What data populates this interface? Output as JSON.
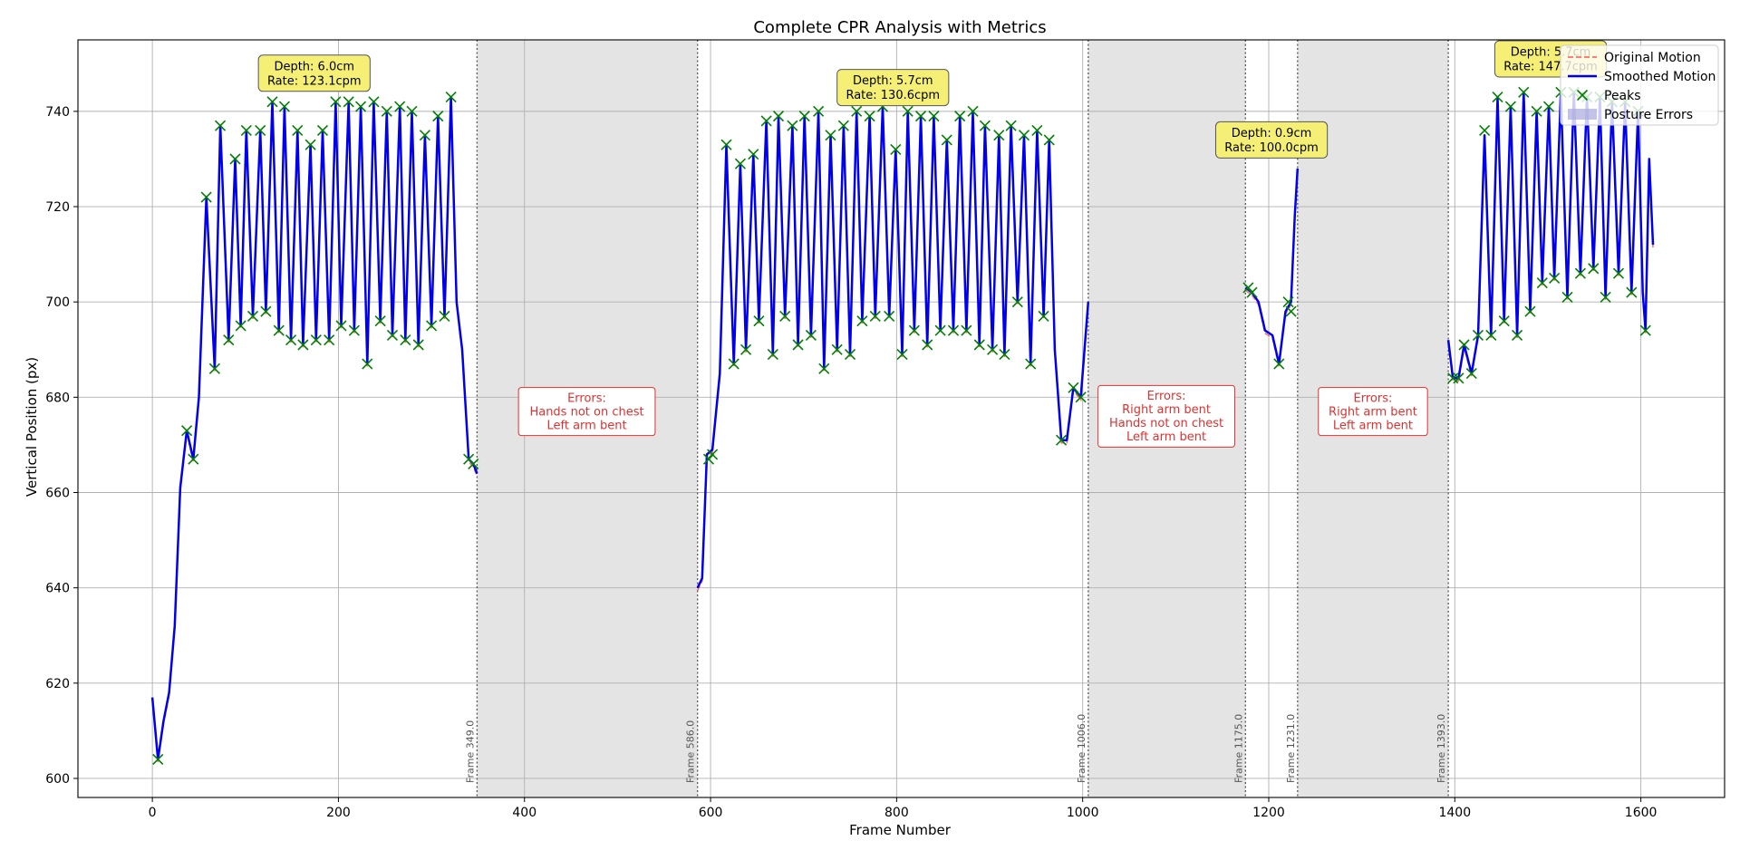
{
  "chart_data": {
    "type": "line",
    "title": "Complete CPR Analysis with Metrics",
    "xlabel": "Frame Number",
    "ylabel": "Vertical Position (px)",
    "xlim": [
      -80,
      1690
    ],
    "ylim": [
      596,
      755
    ],
    "x_ticks": [
      0,
      200,
      400,
      600,
      800,
      1000,
      1200,
      1400,
      1600
    ],
    "y_ticks": [
      600,
      620,
      640,
      660,
      680,
      700,
      720,
      740
    ],
    "grid": true,
    "legend_position": "top-right",
    "legend": [
      {
        "label": "Original Motion",
        "style": "dashed",
        "color": "#ff5555"
      },
      {
        "label": "Smoothed Motion",
        "style": "solid",
        "color": "#0000ee"
      },
      {
        "label": "Peaks",
        "style": "marker-x",
        "color": "#008000"
      },
      {
        "label": "Posture Errors",
        "style": "patch",
        "color": "#aaaadd"
      }
    ],
    "colors": {
      "original": "#ff5555",
      "smoothed": "#0000ee",
      "peaks": "#008000",
      "error_region": "#e4e4e4",
      "metric_box": "#f5f075",
      "error_text": "#e03030"
    },
    "segments": [
      {
        "name": "Segment 1",
        "points": [
          [
            0,
            617
          ],
          [
            6,
            604
          ],
          [
            12,
            612
          ],
          [
            18,
            618
          ],
          [
            24,
            632
          ],
          [
            30,
            661
          ],
          [
            37,
            673
          ],
          [
            44,
            667
          ],
          [
            50,
            680
          ],
          [
            58,
            722
          ],
          [
            67,
            686
          ],
          [
            73,
            737
          ],
          [
            82,
            692
          ],
          [
            89,
            730
          ],
          [
            95,
            695
          ],
          [
            101,
            736
          ],
          [
            108,
            697
          ],
          [
            116,
            736
          ],
          [
            122,
            698
          ],
          [
            129,
            742
          ],
          [
            136,
            694
          ],
          [
            142,
            741
          ],
          [
            149,
            692
          ],
          [
            156,
            736
          ],
          [
            162,
            691
          ],
          [
            170,
            733
          ],
          [
            176,
            692
          ],
          [
            183,
            736
          ],
          [
            190,
            692
          ],
          [
            197,
            742
          ],
          [
            203,
            695
          ],
          [
            211,
            742
          ],
          [
            217,
            694
          ],
          [
            224,
            741
          ],
          [
            231,
            687
          ],
          [
            238,
            742
          ],
          [
            245,
            696
          ],
          [
            252,
            740
          ],
          [
            258,
            693
          ],
          [
            266,
            741
          ],
          [
            272,
            692
          ],
          [
            279,
            740
          ],
          [
            286,
            691
          ],
          [
            293,
            735
          ],
          [
            300,
            695
          ],
          [
            307,
            739
          ],
          [
            314,
            697
          ],
          [
            321,
            743
          ],
          [
            327,
            700
          ],
          [
            333,
            690
          ],
          [
            340,
            667
          ],
          [
            345,
            666
          ],
          [
            349,
            664
          ]
        ]
      },
      {
        "name": "Segment 2",
        "points": [
          [
            586,
            640
          ],
          [
            591,
            642
          ],
          [
            596,
            668
          ],
          [
            602,
            669
          ],
          [
            610,
            685
          ],
          [
            617,
            733
          ],
          [
            625,
            687
          ],
          [
            632,
            729
          ],
          [
            638,
            690
          ],
          [
            646,
            731
          ],
          [
            652,
            696
          ],
          [
            660,
            738
          ],
          [
            667,
            689
          ],
          [
            673,
            739
          ],
          [
            680,
            697
          ],
          [
            688,
            737
          ],
          [
            694,
            691
          ],
          [
            701,
            739
          ],
          [
            708,
            693
          ],
          [
            716,
            740
          ],
          [
            722,
            686
          ],
          [
            729,
            735
          ],
          [
            736,
            690
          ],
          [
            743,
            737
          ],
          [
            750,
            689
          ],
          [
            757,
            740
          ],
          [
            763,
            696
          ],
          [
            771,
            739
          ],
          [
            777,
            697
          ],
          [
            785,
            741
          ],
          [
            792,
            697
          ],
          [
            799,
            732
          ],
          [
            806,
            689
          ],
          [
            812,
            740
          ],
          [
            819,
            694
          ],
          [
            826,
            739
          ],
          [
            833,
            691
          ],
          [
            840,
            739
          ],
          [
            847,
            694
          ],
          [
            854,
            734
          ],
          [
            861,
            694
          ],
          [
            868,
            739
          ],
          [
            875,
            694
          ],
          [
            882,
            740
          ],
          [
            889,
            691
          ],
          [
            895,
            737
          ],
          [
            903,
            690
          ],
          [
            910,
            735
          ],
          [
            916,
            689
          ],
          [
            923,
            737
          ],
          [
            930,
            700
          ],
          [
            937,
            735
          ],
          [
            944,
            687
          ],
          [
            951,
            736
          ],
          [
            958,
            697
          ],
          [
            964,
            734
          ],
          [
            970,
            690
          ],
          [
            977,
            671
          ],
          [
            983,
            671
          ],
          [
            990,
            682
          ],
          [
            998,
            680
          ],
          [
            1006,
            700
          ]
        ]
      },
      {
        "name": "Segment 3",
        "points": [
          [
            1175,
            703
          ],
          [
            1182,
            702
          ],
          [
            1189,
            700
          ],
          [
            1196,
            694
          ],
          [
            1204,
            693
          ],
          [
            1211,
            687
          ],
          [
            1218,
            698
          ],
          [
            1224,
            700
          ],
          [
            1228,
            718
          ],
          [
            1231,
            728
          ]
        ]
      },
      {
        "name": "Segment 4",
        "points": [
          [
            1393,
            692
          ],
          [
            1398,
            684
          ],
          [
            1404,
            684
          ],
          [
            1410,
            691
          ],
          [
            1418,
            685
          ],
          [
            1425,
            693
          ],
          [
            1432,
            735
          ],
          [
            1439,
            693
          ],
          [
            1446,
            743
          ],
          [
            1453,
            696
          ],
          [
            1460,
            741
          ],
          [
            1467,
            693
          ],
          [
            1474,
            744
          ],
          [
            1481,
            698
          ],
          [
            1488,
            740
          ],
          [
            1494,
            704
          ],
          [
            1501,
            741
          ],
          [
            1507,
            705
          ],
          [
            1514,
            744
          ],
          [
            1521,
            701
          ],
          [
            1528,
            744
          ],
          [
            1535,
            706
          ],
          [
            1542,
            743
          ],
          [
            1549,
            707
          ],
          [
            1556,
            743
          ],
          [
            1562,
            701
          ],
          [
            1569,
            742
          ],
          [
            1576,
            706
          ],
          [
            1583,
            742
          ],
          [
            1590,
            702
          ],
          [
            1597,
            740
          ],
          [
            1602,
            702
          ],
          [
            1605,
            694
          ],
          [
            1609,
            730
          ],
          [
            1613,
            712
          ]
        ]
      }
    ],
    "peaks": [
      [
        6,
        604
      ],
      [
        37,
        673
      ],
      [
        44,
        667
      ],
      [
        58,
        722
      ],
      [
        67,
        686
      ],
      [
        73,
        737
      ],
      [
        82,
        692
      ],
      [
        89,
        730
      ],
      [
        95,
        695
      ],
      [
        101,
        736
      ],
      [
        108,
        697
      ],
      [
        116,
        736
      ],
      [
        122,
        698
      ],
      [
        129,
        742
      ],
      [
        136,
        694
      ],
      [
        142,
        741
      ],
      [
        149,
        692
      ],
      [
        156,
        736
      ],
      [
        162,
        691
      ],
      [
        170,
        733
      ],
      [
        176,
        692
      ],
      [
        183,
        736
      ],
      [
        190,
        692
      ],
      [
        197,
        742
      ],
      [
        203,
        695
      ],
      [
        211,
        742
      ],
      [
        217,
        694
      ],
      [
        224,
        741
      ],
      [
        231,
        687
      ],
      [
        238,
        742
      ],
      [
        245,
        696
      ],
      [
        252,
        740
      ],
      [
        258,
        693
      ],
      [
        266,
        741
      ],
      [
        272,
        692
      ],
      [
        279,
        740
      ],
      [
        286,
        691
      ],
      [
        293,
        735
      ],
      [
        300,
        695
      ],
      [
        307,
        739
      ],
      [
        314,
        697
      ],
      [
        321,
        743
      ],
      [
        340,
        667
      ],
      [
        345,
        666
      ],
      [
        598,
        667
      ],
      [
        602,
        668
      ],
      [
        617,
        733
      ],
      [
        625,
        687
      ],
      [
        632,
        729
      ],
      [
        638,
        690
      ],
      [
        646,
        731
      ],
      [
        652,
        696
      ],
      [
        660,
        738
      ],
      [
        667,
        689
      ],
      [
        673,
        739
      ],
      [
        680,
        697
      ],
      [
        688,
        737
      ],
      [
        694,
        691
      ],
      [
        701,
        739
      ],
      [
        708,
        693
      ],
      [
        716,
        740
      ],
      [
        722,
        686
      ],
      [
        729,
        735
      ],
      [
        736,
        690
      ],
      [
        743,
        737
      ],
      [
        750,
        689
      ],
      [
        757,
        740
      ],
      [
        763,
        696
      ],
      [
        771,
        739
      ],
      [
        777,
        697
      ],
      [
        785,
        741
      ],
      [
        792,
        697
      ],
      [
        799,
        732
      ],
      [
        806,
        689
      ],
      [
        812,
        740
      ],
      [
        819,
        694
      ],
      [
        826,
        739
      ],
      [
        833,
        691
      ],
      [
        840,
        739
      ],
      [
        847,
        694
      ],
      [
        854,
        734
      ],
      [
        861,
        694
      ],
      [
        868,
        739
      ],
      [
        875,
        694
      ],
      [
        882,
        740
      ],
      [
        889,
        691
      ],
      [
        895,
        737
      ],
      [
        903,
        690
      ],
      [
        910,
        735
      ],
      [
        916,
        689
      ],
      [
        923,
        737
      ],
      [
        930,
        700
      ],
      [
        937,
        735
      ],
      [
        944,
        687
      ],
      [
        951,
        736
      ],
      [
        958,
        697
      ],
      [
        964,
        734
      ],
      [
        977,
        671
      ],
      [
        990,
        682
      ],
      [
        998,
        680
      ],
      [
        1178,
        703
      ],
      [
        1182,
        702
      ],
      [
        1211,
        687
      ],
      [
        1221,
        700
      ],
      [
        1224,
        698
      ],
      [
        1398,
        684
      ],
      [
        1404,
        684
      ],
      [
        1410,
        691
      ],
      [
        1418,
        685
      ],
      [
        1425,
        693
      ],
      [
        1432,
        736
      ],
      [
        1439,
        693
      ],
      [
        1446,
        743
      ],
      [
        1453,
        696
      ],
      [
        1460,
        741
      ],
      [
        1467,
        693
      ],
      [
        1474,
        744
      ],
      [
        1481,
        698
      ],
      [
        1488,
        740
      ],
      [
        1494,
        704
      ],
      [
        1501,
        741
      ],
      [
        1507,
        705
      ],
      [
        1514,
        744
      ],
      [
        1521,
        701
      ],
      [
        1528,
        744
      ],
      [
        1535,
        706
      ],
      [
        1542,
        743
      ],
      [
        1549,
        707
      ],
      [
        1556,
        743
      ],
      [
        1562,
        701
      ],
      [
        1569,
        742
      ],
      [
        1576,
        706
      ],
      [
        1583,
        742
      ],
      [
        1590,
        702
      ],
      [
        1597,
        740
      ],
      [
        1605,
        694
      ]
    ],
    "error_regions": [
      {
        "start": 349,
        "end": 586,
        "label_x": 467,
        "label_y": 677,
        "lines": [
          "Errors:",
          "Hands not on chest",
          "Left arm bent"
        ]
      },
      {
        "start": 1006,
        "end": 1175,
        "label_x": 1090,
        "label_y": 676,
        "lines": [
          "Errors:",
          "Right arm bent",
          "Hands not on chest",
          "Left arm bent"
        ]
      },
      {
        "start": 1231,
        "end": 1393,
        "label_x": 1312,
        "label_y": 677,
        "lines": [
          "Errors:",
          "Right arm bent",
          "Left arm bent"
        ]
      }
    ],
    "frame_markers": [
      {
        "x": 349,
        "label": "Frame 349.0"
      },
      {
        "x": 586,
        "label": "Frame 586.0"
      },
      {
        "x": 1006,
        "label": "Frame 1006.0"
      },
      {
        "x": 1175,
        "label": "Frame 1175.0"
      },
      {
        "x": 1231,
        "label": "Frame 1231.0"
      },
      {
        "x": 1393,
        "label": "Frame 1393.0"
      }
    ],
    "metric_annotations": [
      {
        "x": 174,
        "y": 748,
        "lines": [
          "Depth: 6.0cm",
          "Rate: 123.1cpm"
        ]
      },
      {
        "x": 796,
        "y": 745,
        "lines": [
          "Depth: 5.7cm",
          "Rate: 130.6cpm"
        ]
      },
      {
        "x": 1203,
        "y": 734,
        "lines": [
          "Depth: 0.9cm",
          "Rate: 100.0cpm"
        ]
      },
      {
        "x": 1503,
        "y": 751,
        "lines": [
          "Depth: 5.7cm",
          "Rate: 147.7cpm"
        ]
      }
    ]
  }
}
